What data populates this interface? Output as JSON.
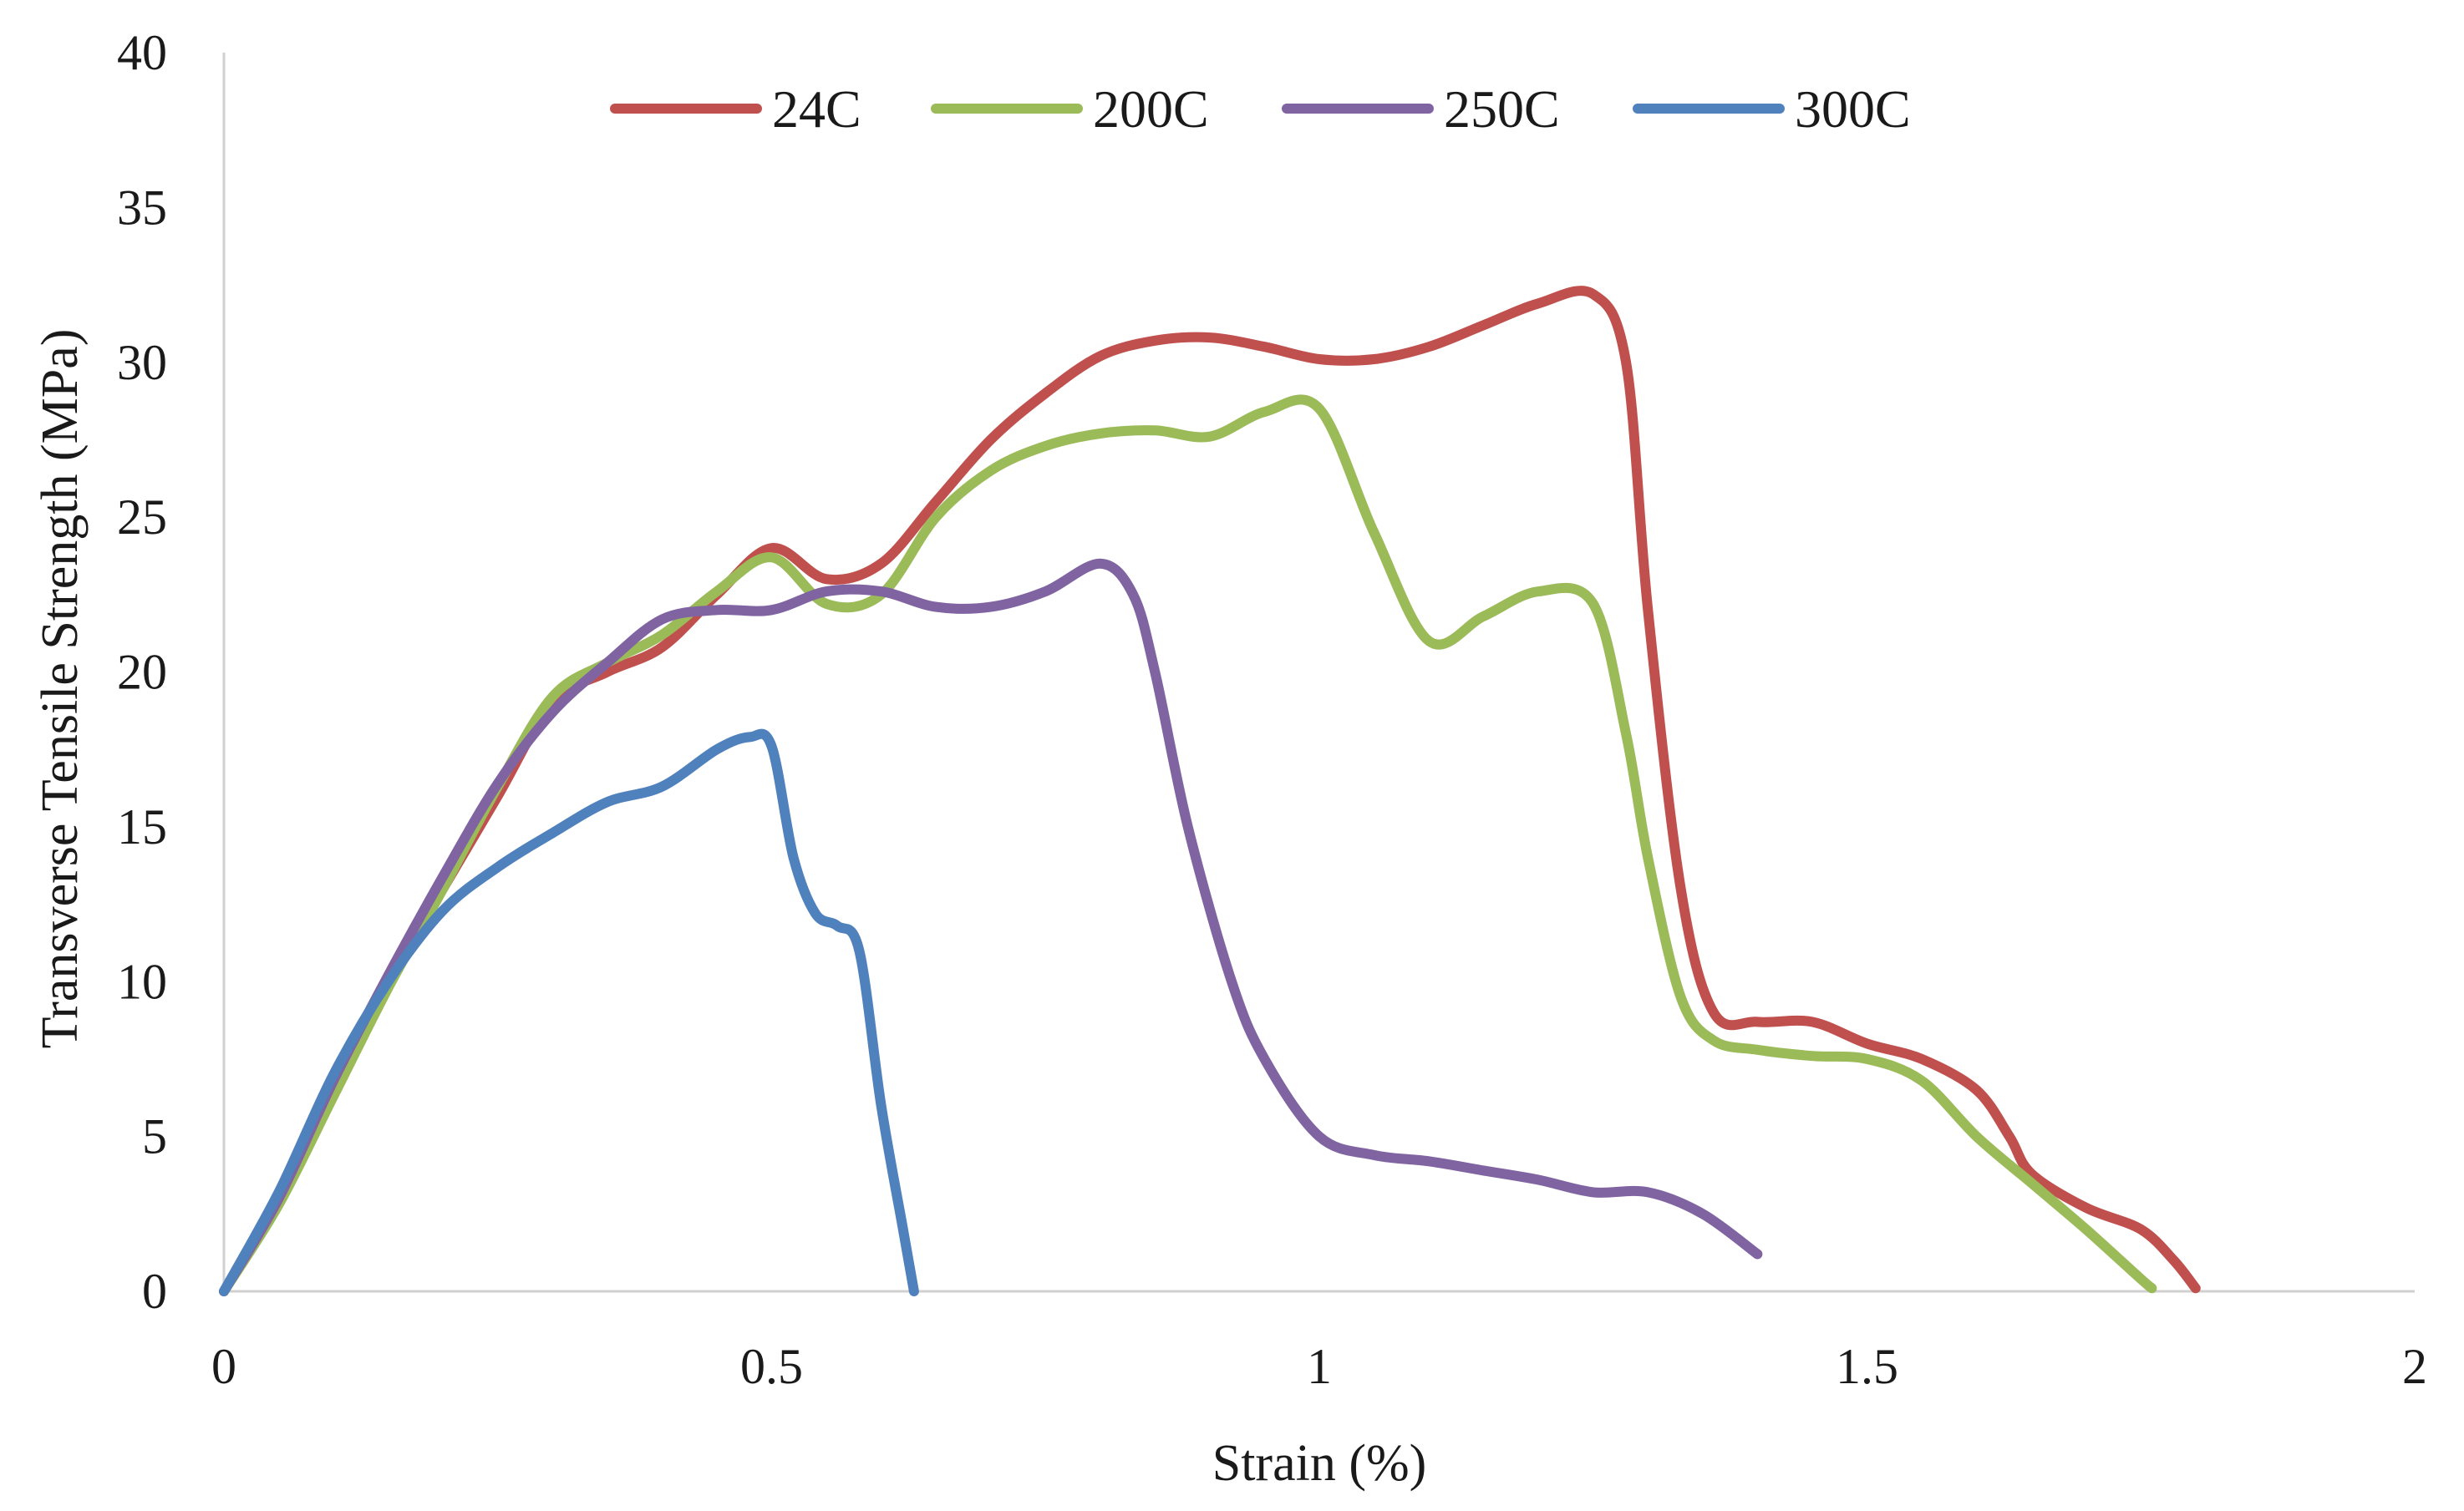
{
  "chart_data": {
    "type": "line",
    "title": "",
    "xlabel": "Strain (%)",
    "ylabel": "Transverse Tensile Strength (MPa)",
    "xlim": [
      0,
      2
    ],
    "ylim": [
      0,
      40
    ],
    "xticks": [
      0,
      0.5,
      1,
      1.5,
      2
    ],
    "xtick_labels": [
      "0",
      "0.5",
      "1",
      "1.5",
      "2"
    ],
    "yticks": [
      0,
      5,
      10,
      15,
      20,
      25,
      30,
      35,
      40
    ],
    "ytick_labels": [
      "0",
      "5",
      "10",
      "15",
      "20",
      "25",
      "30",
      "35",
      "40"
    ],
    "grid": false,
    "legend_position": "top",
    "series": [
      {
        "name": "24C",
        "color": "#C0504D",
        "points": [
          [
            0,
            0
          ],
          [
            0.05,
            3
          ],
          [
            0.1,
            6.5
          ],
          [
            0.15,
            10
          ],
          [
            0.2,
            13
          ],
          [
            0.25,
            16
          ],
          [
            0.3,
            19
          ],
          [
            0.35,
            20
          ],
          [
            0.4,
            20.8
          ],
          [
            0.45,
            22.5
          ],
          [
            0.5,
            24
          ],
          [
            0.55,
            23
          ],
          [
            0.6,
            23.5
          ],
          [
            0.65,
            25.5
          ],
          [
            0.7,
            27.5
          ],
          [
            0.75,
            29
          ],
          [
            0.8,
            30.2
          ],
          [
            0.85,
            30.7
          ],
          [
            0.9,
            30.8
          ],
          [
            0.95,
            30.5
          ],
          [
            1.0,
            30.1
          ],
          [
            1.05,
            30.1
          ],
          [
            1.1,
            30.5
          ],
          [
            1.15,
            31.2
          ],
          [
            1.2,
            31.9
          ],
          [
            1.25,
            32.2
          ],
          [
            1.28,
            30
          ],
          [
            1.3,
            22
          ],
          [
            1.33,
            13
          ],
          [
            1.36,
            9
          ],
          [
            1.4,
            8.7
          ],
          [
            1.45,
            8.7
          ],
          [
            1.5,
            8
          ],
          [
            1.55,
            7.5
          ],
          [
            1.6,
            6.5
          ],
          [
            1.63,
            5
          ],
          [
            1.65,
            3.8
          ],
          [
            1.7,
            2.7
          ],
          [
            1.75,
            2
          ],
          [
            1.78,
            1
          ],
          [
            1.8,
            0.1
          ]
        ]
      },
      {
        "name": "200C",
        "color": "#9BBB59",
        "points": [
          [
            0,
            0
          ],
          [
            0.05,
            2.8
          ],
          [
            0.1,
            6.3
          ],
          [
            0.15,
            9.8
          ],
          [
            0.2,
            13
          ],
          [
            0.25,
            16.3
          ],
          [
            0.3,
            19.2
          ],
          [
            0.35,
            20.3
          ],
          [
            0.4,
            21.2
          ],
          [
            0.45,
            22.6
          ],
          [
            0.5,
            23.7
          ],
          [
            0.55,
            22.2
          ],
          [
            0.6,
            22.5
          ],
          [
            0.65,
            25
          ],
          [
            0.7,
            26.5
          ],
          [
            0.75,
            27.3
          ],
          [
            0.8,
            27.7
          ],
          [
            0.85,
            27.8
          ],
          [
            0.9,
            27.6
          ],
          [
            0.95,
            28.4
          ],
          [
            1.0,
            28.5
          ],
          [
            1.05,
            24.5
          ],
          [
            1.1,
            21
          ],
          [
            1.15,
            21.8
          ],
          [
            1.2,
            22.6
          ],
          [
            1.25,
            22.2
          ],
          [
            1.28,
            18
          ],
          [
            1.3,
            14
          ],
          [
            1.33,
            9.5
          ],
          [
            1.36,
            8.1
          ],
          [
            1.4,
            7.8
          ],
          [
            1.45,
            7.6
          ],
          [
            1.5,
            7.5
          ],
          [
            1.55,
            6.8
          ],
          [
            1.6,
            5
          ],
          [
            1.65,
            3.5
          ],
          [
            1.7,
            2
          ],
          [
            1.75,
            0.4
          ],
          [
            1.76,
            0.1
          ]
        ]
      },
      {
        "name": "250C",
        "color": "#8064A2",
        "points": [
          [
            0,
            0
          ],
          [
            0.05,
            3
          ],
          [
            0.1,
            6.8
          ],
          [
            0.15,
            10.2
          ],
          [
            0.2,
            13.4
          ],
          [
            0.25,
            16.4
          ],
          [
            0.3,
            18.7
          ],
          [
            0.35,
            20.3
          ],
          [
            0.4,
            21.7
          ],
          [
            0.45,
            22
          ],
          [
            0.5,
            22
          ],
          [
            0.55,
            22.6
          ],
          [
            0.6,
            22.6
          ],
          [
            0.65,
            22.1
          ],
          [
            0.7,
            22.1
          ],
          [
            0.75,
            22.6
          ],
          [
            0.8,
            23.5
          ],
          [
            0.83,
            22.5
          ],
          [
            0.85,
            20
          ],
          [
            0.88,
            15
          ],
          [
            0.92,
            10
          ],
          [
            0.95,
            7.5
          ],
          [
            1.0,
            5
          ],
          [
            1.05,
            4.4
          ],
          [
            1.1,
            4.2
          ],
          [
            1.15,
            3.9
          ],
          [
            1.2,
            3.6
          ],
          [
            1.25,
            3.2
          ],
          [
            1.3,
            3.2
          ],
          [
            1.35,
            2.5
          ],
          [
            1.4,
            1.2
          ]
        ]
      },
      {
        "name": "300C",
        "color": "#4F81BD",
        "points": [
          [
            0,
            0
          ],
          [
            0.05,
            3.2
          ],
          [
            0.1,
            7
          ],
          [
            0.15,
            10
          ],
          [
            0.2,
            12.3
          ],
          [
            0.25,
            13.7
          ],
          [
            0.3,
            14.8
          ],
          [
            0.35,
            15.8
          ],
          [
            0.4,
            16.3
          ],
          [
            0.45,
            17.5
          ],
          [
            0.48,
            17.9
          ],
          [
            0.5,
            17.6
          ],
          [
            0.52,
            14
          ],
          [
            0.54,
            12.2
          ],
          [
            0.56,
            11.8
          ],
          [
            0.58,
            11
          ],
          [
            0.6,
            6
          ],
          [
            0.62,
            2
          ],
          [
            0.63,
            0
          ]
        ]
      }
    ]
  }
}
